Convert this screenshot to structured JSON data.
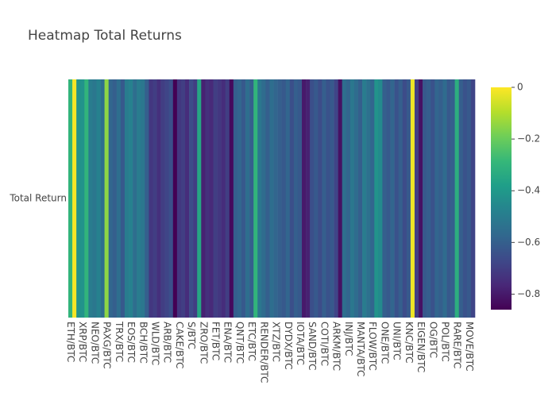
{
  "chart_data": {
    "type": "heatmap",
    "title": "Heatmap Total Returns",
    "categories": [
      "ETH/BTC",
      null,
      null,
      "XRP/BTC",
      null,
      null,
      "NEO/BTC",
      null,
      null,
      "PAXG/BTC",
      null,
      null,
      "TRX/BTC",
      null,
      null,
      "EOS/BTC",
      null,
      null,
      "BCH/BTC",
      null,
      null,
      "WLD/BTC",
      null,
      null,
      "ARB/BTC",
      null,
      null,
      "CAKE/BTC",
      null,
      null,
      "S/BTC",
      null,
      null,
      "ZRO/BTC",
      null,
      null,
      "FET/BTC",
      null,
      null,
      "ENA/BTC",
      null,
      null,
      "QNT/BTC",
      null,
      null,
      "ETC/BTC",
      null,
      null,
      "RENDER/BTC",
      null,
      null,
      "XTZ/BTC",
      null,
      null,
      "DYDX/BTC",
      null,
      null,
      "IOTA/BTC",
      null,
      null,
      "SAND/BTC",
      null,
      null,
      "COTI/BTC",
      null,
      null,
      "ARKM/BTC",
      null,
      null,
      "INJ/BTC",
      null,
      null,
      "MANTA/BTC",
      null,
      null,
      "FLOW/BTC",
      null,
      null,
      "ONE/BTC",
      null,
      null,
      "UNI/BTC",
      null,
      null,
      "KNC/BTC",
      null,
      null,
      "EIGEN/BTC",
      null,
      null,
      "OG/BTC",
      null,
      null,
      "POL/BTC",
      null,
      null,
      "RARE/BTC",
      null,
      null,
      "MOVE/BTC",
      null
    ],
    "rows": [
      "Total Return"
    ],
    "values": [
      [
        -0.3,
        -0.01,
        -0.42,
        -0.42,
        -0.3,
        -0.5,
        -0.52,
        -0.48,
        -0.55,
        -0.15,
        -0.58,
        -0.6,
        -0.55,
        -0.62,
        -0.5,
        -0.48,
        -0.55,
        -0.5,
        -0.52,
        -0.6,
        -0.72,
        -0.7,
        -0.74,
        -0.7,
        -0.68,
        -0.65,
        -0.86,
        -0.72,
        -0.7,
        -0.75,
        -0.66,
        -0.7,
        -0.35,
        -0.78,
        -0.74,
        -0.76,
        -0.7,
        -0.72,
        -0.75,
        -0.7,
        -0.84,
        -0.6,
        -0.58,
        -0.62,
        -0.55,
        -0.6,
        -0.3,
        -0.52,
        -0.56,
        -0.6,
        -0.55,
        -0.58,
        -0.6,
        -0.62,
        -0.58,
        -0.65,
        -0.6,
        -0.62,
        -0.8,
        -0.78,
        -0.65,
        -0.62,
        -0.66,
        -0.6,
        -0.64,
        -0.62,
        -0.68,
        -0.82,
        -0.55,
        -0.58,
        -0.52,
        -0.56,
        -0.6,
        -0.5,
        -0.54,
        -0.58,
        -0.42,
        -0.45,
        -0.6,
        -0.62,
        -0.58,
        -0.64,
        -0.6,
        -0.66,
        -0.62,
        -0.02,
        -0.7,
        -0.82,
        -0.62,
        -0.6,
        -0.64,
        -0.58,
        -0.6,
        -0.56,
        -0.62,
        -0.6,
        -0.32,
        -0.6,
        -0.64,
        -0.62,
        -0.68
      ]
    ],
    "zlim": [
      -0.86,
      0
    ],
    "zticks": [
      0,
      {
        "value": -0.2,
        "label": "−0.2"
      },
      {
        "value": -0.4,
        "label": "−0.4"
      },
      {
        "value": -0.6,
        "label": "−0.6"
      },
      {
        "value": -0.8,
        "label": "−0.8"
      }
    ],
    "colorscale": [
      "#440154",
      "#482878",
      "#3e4989",
      "#31688e",
      "#26828e",
      "#1f9e89",
      "#35b779",
      "#6ece58",
      "#b5de2b",
      "#fde725"
    ]
  }
}
